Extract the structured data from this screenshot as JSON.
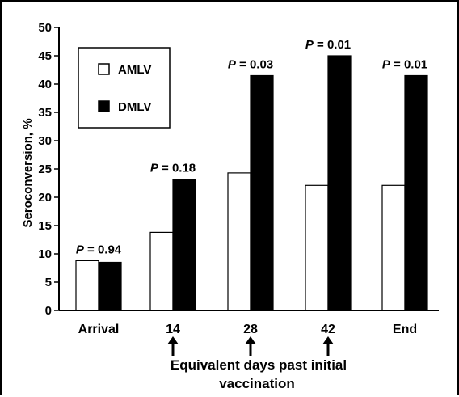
{
  "chart_data": {
    "type": "bar",
    "categories": [
      "Arrival",
      "14",
      "28",
      "42",
      "End"
    ],
    "series": [
      {
        "name": "AMLV",
        "values": [
          8.8,
          13.8,
          24.3,
          22.1,
          22.1
        ],
        "color": "#ffffff"
      },
      {
        "name": "DMLV",
        "values": [
          8.5,
          23.2,
          41.5,
          45.0,
          41.5
        ],
        "color": "#000000"
      }
    ],
    "annotations": [
      {
        "category": "Arrival",
        "p_symbol": "P",
        "p_rest": " = 0.94"
      },
      {
        "category": "14",
        "p_symbol": "P",
        "p_rest": " = 0.18"
      },
      {
        "category": "28",
        "p_symbol": "P",
        "p_rest": " = 0.03"
      },
      {
        "category": "42",
        "p_symbol": "P",
        "p_rest": " = 0.01"
      },
      {
        "category": "End",
        "p_symbol": "P",
        "p_rest": " = 0.01"
      }
    ],
    "arrow_markers": [
      "14",
      "28",
      "42"
    ],
    "xlabel_lines": [
      "Equivalent days past initial",
      "vaccination"
    ],
    "ylabel": "Seroconversion, %",
    "yticks": [
      0,
      5,
      10,
      15,
      20,
      25,
      30,
      35,
      40,
      45,
      50
    ],
    "ylim": [
      0,
      50
    ],
    "legend_position": "top-left",
    "grid": false
  }
}
